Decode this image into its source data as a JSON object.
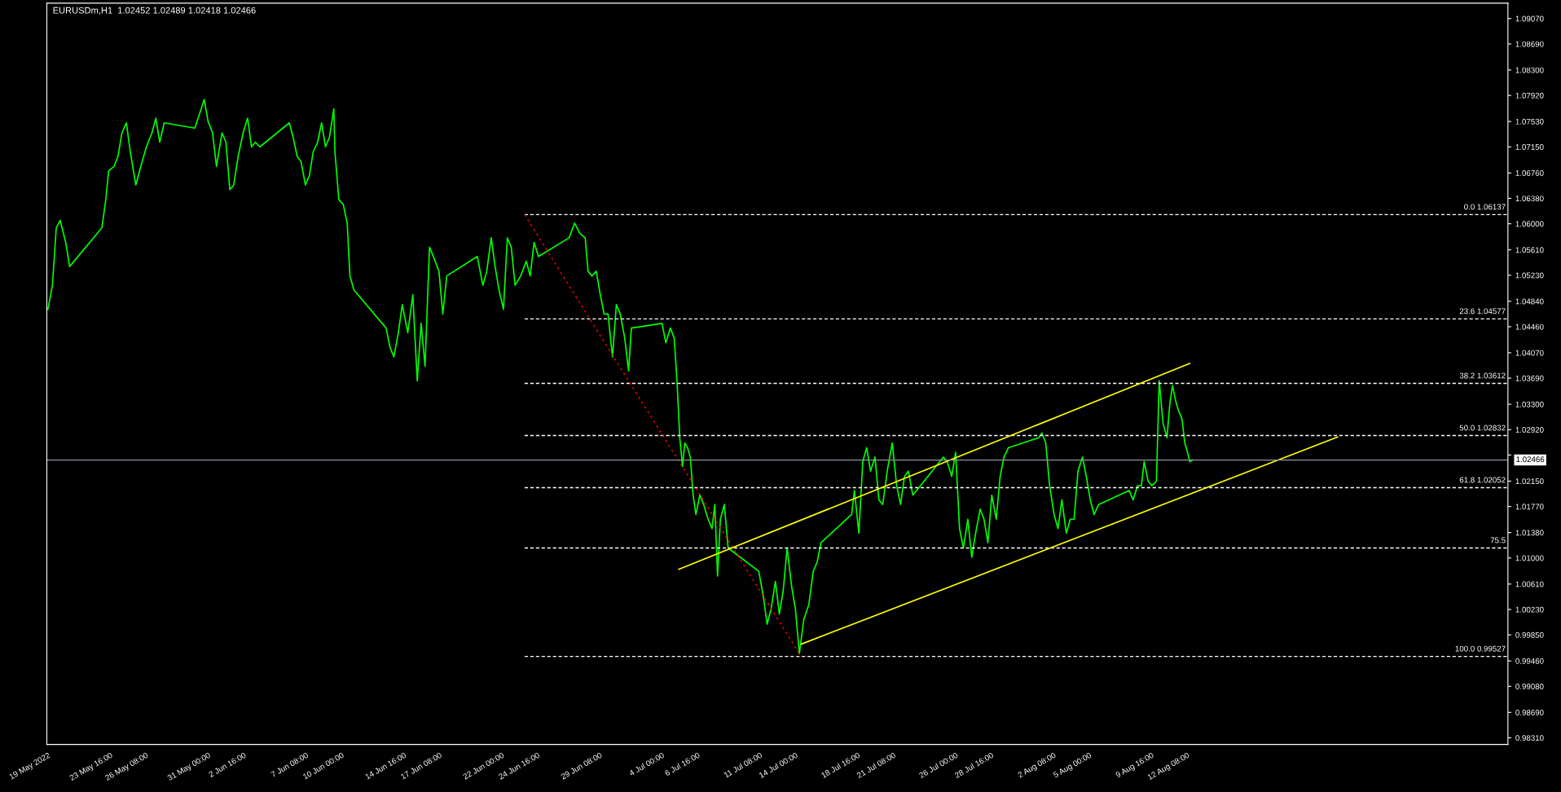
{
  "chart_data": {
    "type": "line",
    "title": "EURUSDm,H1  1.02452 1.02489 1.02418 1.02466",
    "xlim": [
      "2022-05-18T22:00",
      "2022-09-05T09:00"
    ],
    "ylim": [
      0.9821,
      1.093
    ],
    "xticks": [
      {
        "value": "2022-05-19T00:00",
        "label": "19 May 2022"
      },
      {
        "value": "2022-05-23T16:00",
        "label": "23 May 16:00"
      },
      {
        "value": "2022-05-26T08:00",
        "label": "26 May 08:00"
      },
      {
        "value": "2022-05-31T00:00",
        "label": "31 May 00:00"
      },
      {
        "value": "2022-06-02T16:00",
        "label": "2 Jun 16:00"
      },
      {
        "value": "2022-06-07T08:00",
        "label": "7 Jun 08:00"
      },
      {
        "value": "2022-06-10T00:00",
        "label": "10 Jun 00:00"
      },
      {
        "value": "2022-06-14T16:00",
        "label": "14 Jun 16:00"
      },
      {
        "value": "2022-06-17T08:00",
        "label": "17 Jun 08:00"
      },
      {
        "value": "2022-06-22T00:00",
        "label": "22 Jun 00:00"
      },
      {
        "value": "2022-06-24T16:00",
        "label": "24 Jun 16:00"
      },
      {
        "value": "2022-06-29T08:00",
        "label": "29 Jun 08:00"
      },
      {
        "value": "2022-07-04T00:00",
        "label": "4 Jul 00:00"
      },
      {
        "value": "2022-07-06T16:00",
        "label": "6 Jul 16:00"
      },
      {
        "value": "2022-07-11T08:00",
        "label": "11 Jul 08:00"
      },
      {
        "value": "2022-07-14T00:00",
        "label": "14 Jul 00:00"
      },
      {
        "value": "2022-07-18T16:00",
        "label": "18 Jul 16:00"
      },
      {
        "value": "2022-07-21T08:00",
        "label": "21 Jul 08:00"
      },
      {
        "value": "2022-07-26T00:00",
        "label": "26 Jul 00:00"
      },
      {
        "value": "2022-07-28T16:00",
        "label": "28 Jul 16:00"
      },
      {
        "value": "2022-08-02T08:00",
        "label": "2 Aug 08:00"
      },
      {
        "value": "2022-08-05T00:00",
        "label": "5 Aug 00:00"
      },
      {
        "value": "2022-08-09T16:00",
        "label": "9 Aug 16:00"
      },
      {
        "value": "2022-08-12T08:00",
        "label": "12 Aug 08:00"
      }
    ],
    "yticks": [
      {
        "value": 1.0907,
        "label": "1.09070"
      },
      {
        "value": 1.0869,
        "label": "1.08690"
      },
      {
        "value": 1.083,
        "label": "1.08300"
      },
      {
        "value": 1.0792,
        "label": "1.07920"
      },
      {
        "value": 1.0753,
        "label": "1.07530"
      },
      {
        "value": 1.0715,
        "label": "1.07150"
      },
      {
        "value": 1.0676,
        "label": "1.06760"
      },
      {
        "value": 1.0638,
        "label": "1.06380"
      },
      {
        "value": 1.06,
        "label": "1.06000"
      },
      {
        "value": 1.0561,
        "label": "1.05610"
      },
      {
        "value": 1.0523,
        "label": "1.05230"
      },
      {
        "value": 1.0484,
        "label": "1.04840"
      },
      {
        "value": 1.0446,
        "label": "1.04460"
      },
      {
        "value": 1.0407,
        "label": "1.04070"
      },
      {
        "value": 1.0369,
        "label": "1.03690"
      },
      {
        "value": 1.033,
        "label": "1.03300"
      },
      {
        "value": 1.0292,
        "label": "1.02920"
      },
      {
        "value": 1.0254,
        "label": null
      },
      {
        "value": 1.0215,
        "label": "1.02150"
      },
      {
        "value": 1.0177,
        "label": "1.01770"
      },
      {
        "value": 1.0138,
        "label": "1.01380"
      },
      {
        "value": 1.01,
        "label": "1.01000"
      },
      {
        "value": 1.0061,
        "label": "1.00610"
      },
      {
        "value": 1.0023,
        "label": "1.00230"
      },
      {
        "value": 0.9985,
        "label": "0.99850"
      },
      {
        "value": 0.9946,
        "label": "0.99460"
      },
      {
        "value": 0.9908,
        "label": "0.99080"
      },
      {
        "value": 0.9869,
        "label": "0.98690"
      },
      {
        "value": 0.9831,
        "label": "0.98310"
      }
    ],
    "annotations": [
      {
        "text": "0.0 1.06137",
        "x": "2022-09-05T09:00",
        "y": 1.06137
      },
      {
        "text": "23.6 1.04577",
        "x": "2022-09-05T09:00",
        "y": 1.04577
      },
      {
        "text": "38.2 1.03612",
        "x": "2022-09-05T09:00",
        "y": 1.03612
      },
      {
        "text": "50.0 1.02832",
        "x": "2022-09-05T09:00",
        "y": 1.02832
      },
      {
        "text": "61.8 1.02052",
        "x": "2022-09-05T09:00",
        "y": 1.02052
      },
      {
        "text": "75.5",
        "x": "2022-09-05T09:00",
        "y": 1.0115
      },
      {
        "text": "100.0 0.99527",
        "x": "2022-09-05T09:00",
        "y": 0.99527
      }
    ],
    "ref_lines": [
      {
        "axis": "y",
        "value": 1.02466,
        "label": "1.02466",
        "color": "#8c96a0",
        "line_style": "solid"
      }
    ],
    "series": [
      {
        "color": "#00ff00",
        "line_style": "solid",
        "x": [
          "2022-05-19T00:00",
          "2022-05-19T08:00",
          "2022-05-19T15:00",
          "2022-05-19T22:00",
          "2022-05-20T08:00",
          "2022-05-20T15:00",
          "2022-05-23T01:00",
          "2022-05-23T08:00",
          "2022-05-23T13:00",
          "2022-05-23T23:00",
          "2022-05-24T06:00",
          "2022-05-24T13:00",
          "2022-05-24T21:00",
          "2022-05-25T04:00",
          "2022-05-25T14:00",
          "2022-05-25T23:00",
          "2022-05-26T09:00",
          "2022-05-26T19:00",
          "2022-05-27T02:00",
          "2022-05-27T09:00",
          "2022-05-27T17:00",
          "2022-05-30T00:00",
          "2022-05-30T10:00",
          "2022-05-30T17:00",
          "2022-05-31T00:00",
          "2022-05-31T08:00",
          "2022-05-31T15:00",
          "2022-06-01T01:00",
          "2022-06-01T08:00",
          "2022-06-01T15:00",
          "2022-06-01T22:00",
          "2022-06-02T06:00",
          "2022-06-02T15:00",
          "2022-06-02T23:00",
          "2022-06-03T06:00",
          "2022-06-03T13:00",
          "2022-06-03T21:00",
          "2022-06-06T02:00",
          "2022-06-06T09:00",
          "2022-06-06T16:00",
          "2022-06-06T23:00",
          "2022-06-07T07:00",
          "2022-06-07T14:00",
          "2022-06-07T21:00",
          "2022-06-08T05:00",
          "2022-06-08T12:00",
          "2022-06-08T19:00",
          "2022-06-09T02:00",
          "2022-06-09T10:00",
          "2022-06-09T12:00",
          "2022-06-09T19:00",
          "2022-06-10T03:00",
          "2022-06-10T10:00",
          "2022-06-10T15:00",
          "2022-06-10T22:00",
          "2022-06-13T08:00",
          "2022-06-13T15:00",
          "2022-06-13T22:00",
          "2022-06-14T06:00",
          "2022-06-14T13:00",
          "2022-06-14T23:00",
          "2022-06-15T08:00",
          "2022-06-15T16:00",
          "2022-06-15T23:00",
          "2022-06-16T06:00",
          "2022-06-16T14:00",
          "2022-06-16T21:00",
          "2022-06-17T07:00",
          "2022-06-17T14:00",
          "2022-06-17T21:00",
          "2022-06-20T04:00",
          "2022-06-20T14:00",
          "2022-06-20T21:00",
          "2022-06-21T05:00",
          "2022-06-21T12:00",
          "2022-06-21T19:00",
          "2022-06-22T03:00",
          "2022-06-22T10:00",
          "2022-06-22T17:00",
          "2022-06-23T00:00",
          "2022-06-23T10:00",
          "2022-06-23T20:00",
          "2022-06-24T03:00",
          "2022-06-24T10:00",
          "2022-06-24T18:00",
          "2022-06-27T01:00",
          "2022-06-27T11:00",
          "2022-06-27T20:00",
          "2022-06-28T06:00",
          "2022-06-28T11:00",
          "2022-06-28T18:00",
          "2022-06-29T02:00",
          "2022-06-29T09:00",
          "2022-06-29T16:00",
          "2022-06-29T23:00",
          "2022-06-30T07:00",
          "2022-06-30T14:00",
          "2022-06-30T21:00",
          "2022-07-01T05:00",
          "2022-07-01T12:00",
          "2022-07-01T17:00",
          "2022-07-04T00:00",
          "2022-07-04T07:00",
          "2022-07-04T15:00",
          "2022-07-04T22:00",
          "2022-07-05T03:00",
          "2022-07-05T08:00",
          "2022-07-05T13:00",
          "2022-07-05T17:00",
          "2022-07-05T22:00",
          "2022-07-06T03:00",
          "2022-07-06T08:00",
          "2022-07-06T13:00",
          "2022-07-06T20:00",
          "2022-07-07T03:00",
          "2022-07-07T11:00",
          "2022-07-07T18:00",
          "2022-07-07T23:00",
          "2022-07-08T04:00",
          "2022-07-08T09:00",
          "2022-07-08T16:00",
          "2022-07-08T23:00",
          "2022-07-11T06:00",
          "2022-07-11T14:00",
          "2022-07-11T21:00",
          "2022-07-12T04:00",
          "2022-07-12T12:00",
          "2022-07-12T19:00",
          "2022-07-13T02:00",
          "2022-07-13T09:00",
          "2022-07-13T17:00",
          "2022-07-14T00:00",
          "2022-07-14T07:00",
          "2022-07-14T15:00",
          "2022-07-15T00:00",
          "2022-07-15T08:00",
          "2022-07-15T15:00",
          "2022-07-15T22:00",
          "2022-07-18T05:00",
          "2022-07-18T10:00",
          "2022-07-18T18:00",
          "2022-07-19T01:00",
          "2022-07-19T08:00",
          "2022-07-19T15:00",
          "2022-07-19T23:00",
          "2022-07-20T06:00",
          "2022-07-20T13:00",
          "2022-07-20T21:00",
          "2022-07-21T06:00",
          "2022-07-21T14:00",
          "2022-07-21T21:00",
          "2022-07-22T04:00",
          "2022-07-22T11:00",
          "2022-07-22T19:00",
          "2022-07-25T02:00",
          "2022-07-25T09:00",
          "2022-07-25T17:00",
          "2022-07-26T00:00",
          "2022-07-26T07:00",
          "2022-07-26T14:00",
          "2022-07-26T22:00",
          "2022-07-27T05:00",
          "2022-07-27T12:00",
          "2022-07-27T20:00",
          "2022-07-28T03:00",
          "2022-07-28T10:00",
          "2022-07-28T17:00",
          "2022-07-29T01:00",
          "2022-07-29T08:00",
          "2022-07-29T15:00",
          "2022-07-29T23:00",
          "2022-08-01T06:00",
          "2022-08-01T11:00",
          "2022-08-01T18:00",
          "2022-08-02T01:00",
          "2022-08-02T09:00",
          "2022-08-02T16:00",
          "2022-08-02T23:00",
          "2022-08-03T07:00",
          "2022-08-03T14:00",
          "2022-08-03T21:00",
          "2022-08-04T04:00",
          "2022-08-04T12:00",
          "2022-08-04T19:00",
          "2022-08-05T02:00",
          "2022-08-05T09:00",
          "2022-08-05T17:00",
          "2022-08-08T00:00",
          "2022-08-08T07:00",
          "2022-08-08T15:00",
          "2022-08-08T22:00",
          "2022-08-09T03:00",
          "2022-08-09T10:00",
          "2022-08-09T17:00",
          "2022-08-10T01:00",
          "2022-08-10T06:00",
          "2022-08-10T13:00",
          "2022-08-10T20:00",
          "2022-08-11T01:00",
          "2022-08-11T06:00",
          "2022-08-11T11:00",
          "2022-08-11T16:00",
          "2022-08-11T23:00",
          "2022-08-12T04:00",
          "2022-08-12T09:00",
          "2022-08-12T13:00",
          "2022-08-12T18:00"
        ],
        "values": [
          1.0472,
          1.0508,
          1.0594,
          1.0605,
          1.0572,
          1.0536,
          1.0594,
          1.0636,
          1.0679,
          1.0686,
          1.0701,
          1.0736,
          1.0751,
          1.0708,
          1.0658,
          1.0686,
          1.0715,
          1.0736,
          1.0758,
          1.0722,
          1.0751,
          1.0743,
          1.0768,
          1.0786,
          1.0753,
          1.0736,
          1.0686,
          1.0736,
          1.0722,
          1.0651,
          1.0658,
          1.0701,
          1.0736,
          1.0758,
          1.0715,
          1.0722,
          1.0715,
          1.0751,
          1.0729,
          1.0701,
          1.0693,
          1.0658,
          1.0672,
          1.0708,
          1.0722,
          1.0751,
          1.0715,
          1.0729,
          1.0772,
          1.0708,
          1.0636,
          1.0629,
          1.0601,
          1.0522,
          1.0501,
          1.0444,
          1.0415,
          1.0401,
          1.0437,
          1.0479,
          1.0437,
          1.0494,
          1.0365,
          1.0451,
          1.0387,
          1.0565,
          1.0551,
          1.0529,
          1.0465,
          1.0522,
          1.0551,
          1.0508,
          1.0529,
          1.0579,
          1.0536,
          1.0501,
          1.0472,
          1.0579,
          1.0565,
          1.0508,
          1.0522,
          1.0544,
          1.0522,
          1.0572,
          1.0551,
          1.0579,
          1.0601,
          1.0586,
          1.0579,
          1.0529,
          1.0522,
          1.0529,
          1.0494,
          1.0465,
          1.0465,
          1.0401,
          1.0479,
          1.0465,
          1.0429,
          1.038,
          1.0444,
          1.0451,
          1.0422,
          1.0444,
          1.0429,
          1.0365,
          1.028,
          1.0237,
          1.0272,
          1.0265,
          1.0251,
          1.0194,
          1.0165,
          1.0194,
          1.018,
          1.0158,
          1.0144,
          1.018,
          1.0073,
          1.0158,
          1.018,
          1.0115,
          1.008,
          1.0044,
          1.0001,
          1.0023,
          1.0065,
          1.0016,
          1.0051,
          1.0115,
          1.0058,
          1.0023,
          0.9957,
          1.0008,
          1.003,
          1.008,
          1.0094,
          1.0123,
          1.0165,
          1.0201,
          1.0137,
          1.0244,
          1.0265,
          1.023,
          1.0251,
          1.0187,
          1.018,
          1.023,
          1.0272,
          1.0208,
          1.018,
          1.0222,
          1.023,
          1.0194,
          1.0251,
          1.0244,
          1.0222,
          1.0258,
          1.0144,
          1.0115,
          1.0158,
          1.0101,
          1.0137,
          1.0173,
          1.0158,
          1.0123,
          1.0194,
          1.0158,
          1.0222,
          1.0251,
          1.0265,
          1.028,
          1.0287,
          1.0272,
          1.0208,
          1.0165,
          1.0144,
          1.0187,
          1.0137,
          1.0158,
          1.0158,
          1.023,
          1.0251,
          1.0222,
          1.0187,
          1.0165,
          1.018,
          1.0201,
          1.0187,
          1.0208,
          1.0208,
          1.0244,
          1.0215,
          1.0208,
          1.0215,
          1.0365,
          1.0301,
          1.028,
          1.033,
          1.0358,
          1.0337,
          1.0322,
          1.0308,
          1.0272,
          1.0258,
          1.0244,
          1.0247
        ]
      },
      {
        "color": "#ffffff",
        "line_style": "dashed",
        "x": [
          "2022-06-23T17:00",
          "2022-09-05T09:00"
        ],
        "values": [
          1.06137,
          1.06137
        ]
      },
      {
        "color": "#ffffff",
        "line_style": "dashed",
        "x": [
          "2022-06-23T17:00",
          "2022-09-05T09:00"
        ],
        "values": [
          1.04577,
          1.04577
        ]
      },
      {
        "color": "#ffffff",
        "line_style": "dashed",
        "x": [
          "2022-06-23T17:00",
          "2022-09-05T09:00"
        ],
        "values": [
          1.03612,
          1.03612
        ]
      },
      {
        "color": "#ffffff",
        "line_style": "dashed",
        "x": [
          "2022-06-23T17:00",
          "2022-09-05T09:00"
        ],
        "values": [
          1.02832,
          1.02832
        ]
      },
      {
        "color": "#ffffff",
        "line_style": "dashed",
        "x": [
          "2022-06-23T17:00",
          "2022-09-05T09:00"
        ],
        "values": [
          1.02052,
          1.02052
        ]
      },
      {
        "color": "#ffffff",
        "line_style": "dashed",
        "x": [
          "2022-06-23T17:00",
          "2022-09-05T09:00"
        ],
        "values": [
          1.0115,
          1.0115
        ]
      },
      {
        "color": "#ffffff",
        "line_style": "dashed",
        "x": [
          "2022-06-23T17:00",
          "2022-09-05T09:00"
        ],
        "values": [
          0.99527,
          0.99527
        ]
      },
      {
        "color": "#ff0000",
        "line_style": "dotted",
        "x": [
          "2022-06-23T17:00",
          "2022-07-14T10:00"
        ],
        "values": [
          1.06137,
          0.99527
        ]
      },
      {
        "color": "#ffff00",
        "line_style": "solid",
        "x": [
          "2022-07-05T06:00",
          "2022-08-12T13:00"
        ],
        "values": [
          1.0083,
          1.0391
        ]
      },
      {
        "color": "#ffff00",
        "line_style": "solid",
        "x": [
          "2022-07-14T10:00",
          "2022-08-23T15:00"
        ],
        "values": [
          0.9971,
          1.0281
        ]
      }
    ]
  }
}
